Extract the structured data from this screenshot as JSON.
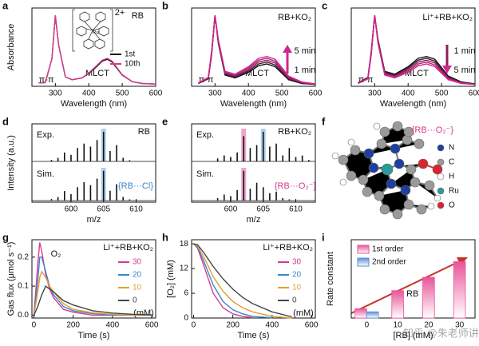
{
  "chart_data": [
    {
      "label": "a",
      "type": "line",
      "title": "RB",
      "xlabel": "Wavelength (nm)",
      "ylabel": "Absorbance",
      "annotations": [
        "π-π",
        "MLCT",
        "2+"
      ],
      "x": [
        250,
        270,
        290,
        300,
        310,
        330,
        350,
        380,
        400,
        420,
        440,
        455,
        470,
        500,
        530,
        560,
        600
      ],
      "series": [
        {
          "name": "1st",
          "color": "#111111",
          "values": [
            0.18,
            0.2,
            1.5,
            3.8,
            2.2,
            0.5,
            0.35,
            0.45,
            0.7,
            1.0,
            1.35,
            1.45,
            1.3,
            0.6,
            0.25,
            0.15,
            0.12
          ]
        },
        {
          "name": "10th",
          "color": "#d63a8f",
          "values": [
            0.18,
            0.2,
            1.5,
            3.8,
            2.2,
            0.5,
            0.35,
            0.45,
            0.72,
            1.05,
            1.4,
            1.5,
            1.35,
            0.62,
            0.25,
            0.15,
            0.12
          ]
        }
      ],
      "xlim": [
        230,
        600
      ],
      "xticks": [
        300,
        400,
        500,
        600
      ],
      "ylim": [
        0,
        4.2
      ]
    },
    {
      "label": "b",
      "type": "line",
      "title": "RB+KO₂",
      "xlabel": "Wavelength (nm)",
      "annotations": [
        "π-π",
        "MLCT",
        "5 min",
        "1 min"
      ],
      "x": [
        250,
        280,
        290,
        300,
        310,
        330,
        360,
        400,
        430,
        455,
        480,
        520,
        560,
        600
      ],
      "series": [
        {
          "color": "#111111",
          "values": [
            0.15,
            0.4,
            1.7,
            3.8,
            2.3,
            0.6,
            0.45,
            0.75,
            1.1,
            1.2,
            1.05,
            0.35,
            0.15,
            0.1
          ]
        },
        {
          "color": "#4a1a35",
          "values": [
            0.15,
            0.42,
            1.75,
            3.8,
            2.35,
            0.65,
            0.5,
            0.82,
            1.2,
            1.3,
            1.15,
            0.4,
            0.17,
            0.1
          ]
        },
        {
          "color": "#8a1f5a",
          "values": [
            0.16,
            0.44,
            1.8,
            3.8,
            2.4,
            0.7,
            0.55,
            0.9,
            1.3,
            1.4,
            1.25,
            0.45,
            0.19,
            0.11
          ]
        },
        {
          "color": "#b8237a",
          "values": [
            0.17,
            0.46,
            1.85,
            3.8,
            2.45,
            0.75,
            0.6,
            0.98,
            1.4,
            1.5,
            1.35,
            0.5,
            0.21,
            0.12
          ]
        },
        {
          "color": "#d4258f",
          "values": [
            0.18,
            0.48,
            1.9,
            3.8,
            2.5,
            0.8,
            0.65,
            1.05,
            1.5,
            1.6,
            1.45,
            0.55,
            0.23,
            0.13
          ]
        }
      ],
      "xlim": [
        230,
        600
      ],
      "xticks": [
        300,
        400,
        500,
        600
      ],
      "ylim": [
        0,
        4.2
      ]
    },
    {
      "label": "c",
      "type": "line",
      "title": "Li⁺+RB+KO₂",
      "xlabel": "Wavelength (nm)",
      "annotations": [
        "π-π",
        "MLCT",
        "1 min",
        "5 min"
      ],
      "x": [
        250,
        280,
        290,
        300,
        310,
        330,
        360,
        400,
        430,
        455,
        480,
        520,
        560,
        600
      ],
      "series": [
        {
          "color": "#111111",
          "values": [
            0.18,
            0.48,
            1.9,
            3.8,
            2.5,
            0.8,
            0.65,
            1.05,
            1.5,
            1.6,
            1.45,
            0.55,
            0.23,
            0.13
          ]
        },
        {
          "color": "#4a1a35",
          "values": [
            0.17,
            0.46,
            1.85,
            3.8,
            2.45,
            0.75,
            0.6,
            0.98,
            1.4,
            1.5,
            1.35,
            0.5,
            0.21,
            0.12
          ]
        },
        {
          "color": "#8a1f5a",
          "values": [
            0.16,
            0.44,
            1.8,
            3.8,
            2.4,
            0.7,
            0.55,
            0.9,
            1.3,
            1.4,
            1.25,
            0.45,
            0.19,
            0.11
          ]
        },
        {
          "color": "#b8237a",
          "values": [
            0.15,
            0.42,
            1.75,
            3.8,
            2.35,
            0.65,
            0.5,
            0.82,
            1.2,
            1.3,
            1.15,
            0.4,
            0.17,
            0.1
          ]
        },
        {
          "color": "#d4258f",
          "values": [
            0.15,
            0.4,
            1.7,
            3.8,
            2.3,
            0.6,
            0.45,
            0.75,
            1.1,
            1.2,
            1.05,
            0.35,
            0.15,
            0.1
          ]
        }
      ],
      "xlim": [
        230,
        600
      ],
      "xticks": [
        300,
        400,
        500,
        600
      ],
      "ylim": [
        0,
        4.2
      ]
    },
    {
      "label": "d",
      "type": "stick",
      "title": "RB",
      "xlabel": "m/z",
      "ylabel": "Intensity (a.u.)",
      "annotations": [
        "{RB···Cl}"
      ],
      "x": [
        597,
        598,
        599,
        600,
        601,
        602,
        603,
        604,
        605,
        606,
        607,
        608,
        609
      ],
      "series": [
        {
          "name": "Exp.",
          "color": "#111111",
          "values": [
            0.05,
            0.12,
            0.3,
            0.22,
            0.45,
            0.6,
            0.5,
            0.72,
            1.0,
            0.35,
            0.55,
            0.12,
            0.04
          ],
          "highlights": [
            {
              "x": 605,
              "color": "#6aa8dc"
            }
          ]
        },
        {
          "name": "Sim.",
          "color": "#111111",
          "values": [
            0.05,
            0.12,
            0.32,
            0.22,
            0.45,
            0.62,
            0.52,
            0.74,
            1.0,
            0.33,
            0.55,
            0.12,
            0.04
          ],
          "highlights": [
            {
              "x": 605,
              "color": "#6aa8dc"
            }
          ]
        }
      ],
      "xlim": [
        594,
        613
      ],
      "xticks": [
        600,
        605,
        610
      ],
      "ylim": [
        0,
        1.05
      ]
    },
    {
      "label": "e",
      "type": "stick",
      "title": "RB+KO₂",
      "xlabel": "m/z",
      "annotations": [
        "{RB···O₂⁻}"
      ],
      "x": [
        598,
        599,
        600,
        601,
        602,
        603,
        604,
        605,
        606,
        607,
        608,
        609,
        610,
        611,
        612
      ],
      "series": [
        {
          "name": "Exp.",
          "color": "#111111",
          "values": [
            0.1,
            0.2,
            0.15,
            0.3,
            0.85,
            0.45,
            0.55,
            1.0,
            0.5,
            0.6,
            0.2,
            0.45,
            0.15,
            0.2,
            0.05
          ],
          "highlights": [
            {
              "x": 602,
              "color": "#e05aa5"
            },
            {
              "x": 605,
              "color": "#6aa8dc"
            }
          ]
        },
        {
          "name": "Sim.",
          "color": "#111111",
          "values": [
            0.08,
            0.2,
            0.15,
            0.35,
            1.0,
            0.4,
            0.6,
            0.45,
            0.25,
            0.3,
            0.08,
            0.04,
            0,
            0,
            0
          ],
          "highlights": [
            {
              "x": 602,
              "color": "#e05aa5"
            }
          ]
        }
      ],
      "xlim": [
        594,
        613
      ],
      "xticks": [
        600,
        605,
        610
      ],
      "ylim": [
        0,
        1.05
      ]
    },
    {
      "label": "f",
      "type": "molecule",
      "title": "{RB···O₂⁻}",
      "legend": [
        {
          "name": "N",
          "color": "#1f3fa0"
        },
        {
          "name": "C",
          "color": "#9a9a9a"
        },
        {
          "name": "H",
          "color": "#ffffff"
        },
        {
          "name": "Ru",
          "color": "#2a9a9a"
        },
        {
          "name": "O",
          "color": "#d8262e"
        }
      ]
    },
    {
      "label": "g",
      "type": "line",
      "title": "Li⁺+RB+KO₂",
      "xlabel": "Time (s)",
      "ylabel": "Gas flux (μmol s⁻¹)",
      "annotations": [
        "O₂",
        "(mM)"
      ],
      "x": [
        0,
        20,
        30,
        40,
        60,
        80,
        100,
        150,
        200,
        300,
        400,
        500,
        600
      ],
      "series": [
        {
          "name": "30",
          "color": "#d63a96",
          "values": [
            0,
            0.18,
            0.25,
            0.22,
            0.14,
            0.09,
            0.06,
            0.02,
            0.01,
            0,
            0,
            0,
            0
          ]
        },
        {
          "name": "20",
          "color": "#3a86c8",
          "values": [
            0,
            0.12,
            0.2,
            0.2,
            0.15,
            0.1,
            0.07,
            0.03,
            0.015,
            0.005,
            0,
            0,
            0
          ]
        },
        {
          "name": "10",
          "color": "#e0a030",
          "values": [
            0,
            0.08,
            0.13,
            0.15,
            0.13,
            0.1,
            0.08,
            0.04,
            0.02,
            0.008,
            0.003,
            0,
            0
          ]
        },
        {
          "name": "0",
          "color": "#444444",
          "values": [
            0,
            0.03,
            0.05,
            0.07,
            0.1,
            0.09,
            0.08,
            0.05,
            0.035,
            0.015,
            0.007,
            0.003,
            0.001
          ]
        }
      ],
      "xlim": [
        -10,
        620
      ],
      "xticks": [
        0,
        200,
        400,
        600
      ],
      "ylim": [
        -0.01,
        0.26
      ],
      "yticks": [
        {
          "value": 0,
          "label": "0.0"
        },
        0.1,
        0.2
      ]
    },
    {
      "label": "h",
      "type": "line",
      "title": "Li⁺+RB+KO₂",
      "xlabel": "Time (s)",
      "ylabel": "[O₂] (mM)",
      "annotations": [
        "(mM)"
      ],
      "x": [
        0,
        20,
        50,
        100,
        150,
        200,
        250,
        300,
        400,
        500
      ],
      "series": [
        {
          "name": "30",
          "color": "#d63a96",
          "values": [
            18,
            17,
            13,
            6,
            2.5,
            1,
            0.4,
            0.1,
            null,
            null
          ]
        },
        {
          "name": "20",
          "color": "#3a86c8",
          "values": [
            18,
            17.2,
            14,
            8,
            4,
            2,
            1,
            0.4,
            0.05,
            null
          ]
        },
        {
          "name": "10",
          "color": "#e0a030",
          "values": [
            18,
            17.5,
            15,
            10,
            6.5,
            4,
            2.5,
            1.5,
            0.4,
            0
          ]
        },
        {
          "name": "0",
          "color": "#444444",
          "values": [
            18,
            17.8,
            16,
            12.5,
            9.5,
            7,
            5,
            3.5,
            1.5,
            0.3
          ]
        }
      ],
      "xlim": [
        -10,
        620
      ],
      "xticks": [
        0,
        200,
        400,
        600
      ],
      "ylim": [
        0,
        19
      ],
      "yticks": [
        0,
        6,
        12,
        18
      ]
    },
    {
      "label": "i",
      "type": "bar",
      "xlabel": "[RB] (mM)",
      "ylabel": "Rate constant",
      "annotations": [
        "+ RB"
      ],
      "categories": [
        "0",
        "10",
        "20",
        "30"
      ],
      "series": [
        {
          "name": "1st order",
          "color": "#e8559a",
          "values": [
            0.12,
            0.35,
            0.52,
            0.72
          ]
        },
        {
          "name": "2nd order",
          "color": "#5b8fd6",
          "values": [
            0.08,
            null,
            null,
            null
          ]
        }
      ],
      "ylim": [
        0,
        1
      ]
    }
  ],
  "watermark": "知乎 @朱老师讲ASP"
}
